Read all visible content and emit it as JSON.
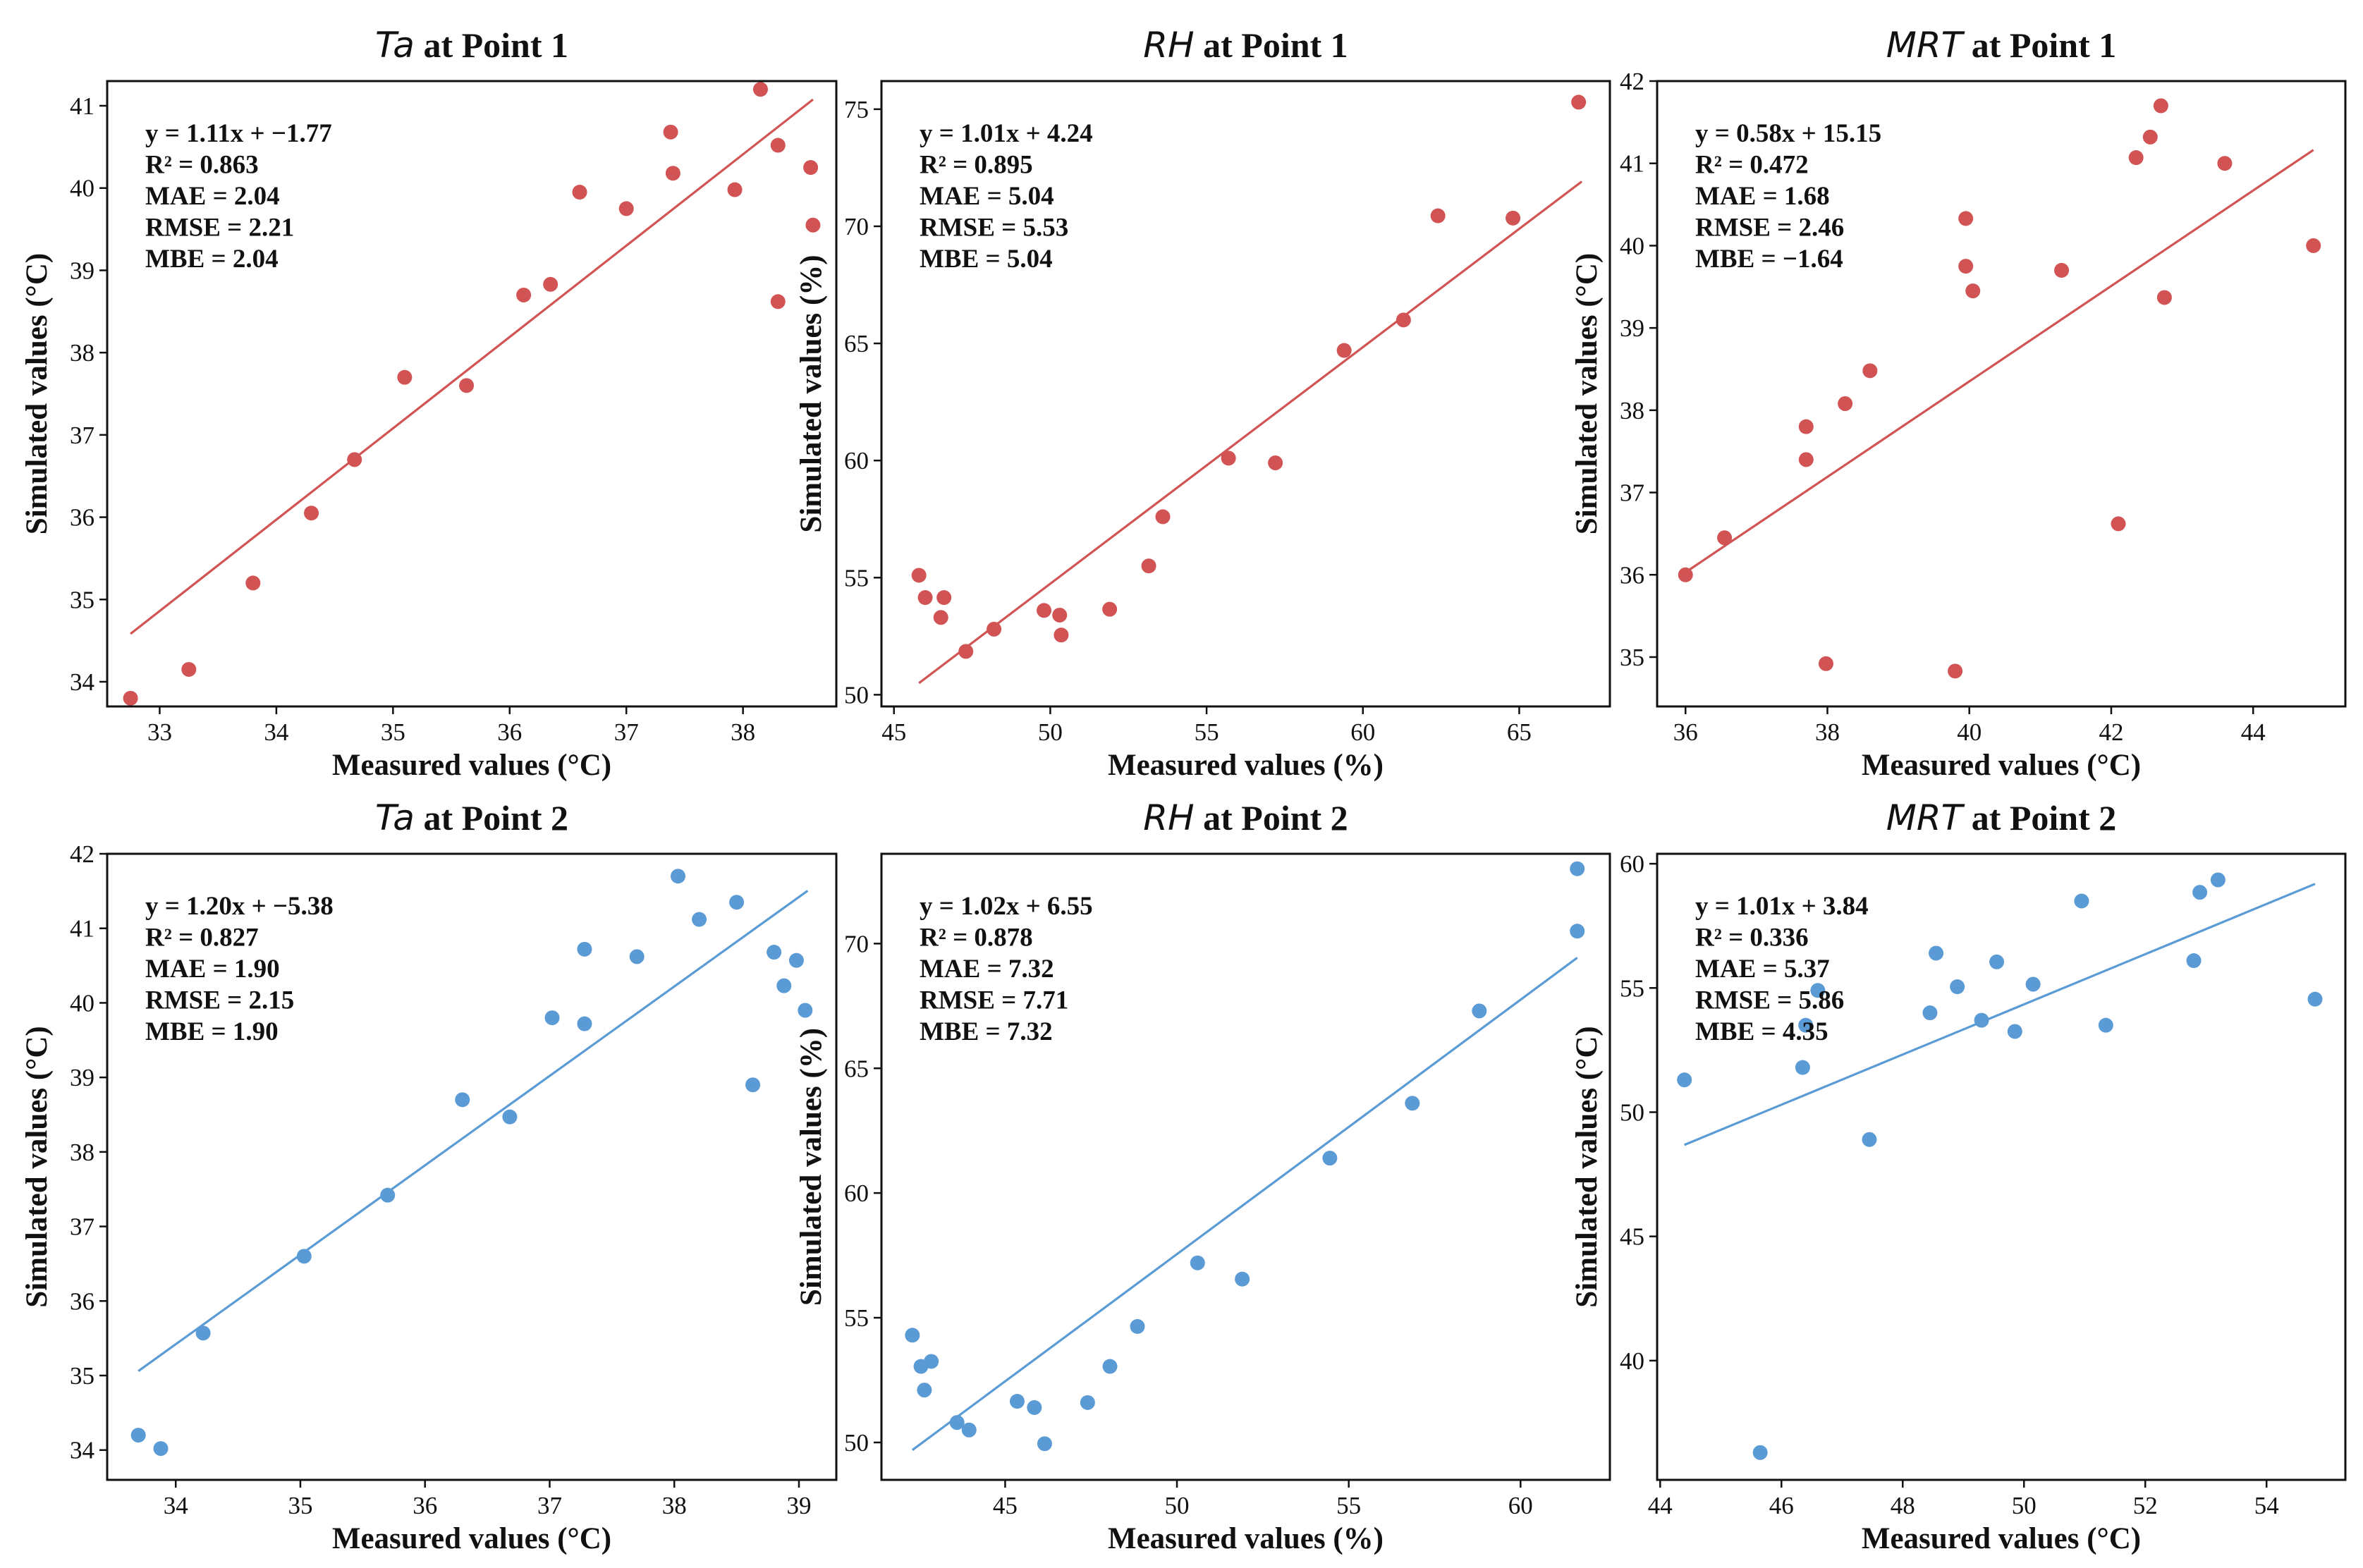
{
  "chart_data": [
    {
      "type": "scatter",
      "title_var": "Ta",
      "title_rest": " at Point 1",
      "xlabel": "Measured values (°C)",
      "ylabel": "Simulated values (°C)",
      "color": "#d15353",
      "xlim": [
        32.55,
        38.8
      ],
      "ylim": [
        33.7,
        41.3
      ],
      "xticks": [
        33,
        34,
        35,
        36,
        37,
        38
      ],
      "yticks": [
        34,
        35,
        36,
        37,
        38,
        39,
        40,
        41
      ],
      "fit": {
        "slope": 1.11,
        "intercept": -1.77,
        "x_start": 32.75,
        "x_end": 38.6
      },
      "stats": [
        "y = 1.11x + −1.77",
        "R² = 0.863",
        "MAE = 2.04",
        "RMSE = 2.21",
        "MBE = 2.04"
      ],
      "points": [
        [
          32.75,
          33.8
        ],
        [
          33.25,
          34.15
        ],
        [
          33.8,
          35.2
        ],
        [
          34.3,
          36.05
        ],
        [
          34.67,
          36.7
        ],
        [
          35.1,
          37.7
        ],
        [
          35.63,
          37.6
        ],
        [
          36.12,
          38.7
        ],
        [
          36.35,
          38.83
        ],
        [
          36.6,
          39.95
        ],
        [
          37.0,
          39.75
        ],
        [
          37.38,
          40.68
        ],
        [
          37.4,
          40.18
        ],
        [
          37.93,
          39.98
        ],
        [
          38.15,
          41.2
        ],
        [
          38.3,
          40.52
        ],
        [
          38.3,
          38.62
        ],
        [
          38.58,
          40.25
        ],
        [
          38.6,
          39.55
        ]
      ]
    },
    {
      "type": "scatter",
      "title_var": "RH",
      "title_rest": " at Point 1",
      "xlabel": "Measured values (%)",
      "ylabel": "Simulated values (%)",
      "color": "#d15353",
      "xlim": [
        44.6,
        67.9
      ],
      "ylim": [
        49.5,
        76.2
      ],
      "xticks": [
        45,
        50,
        55,
        60,
        65
      ],
      "yticks": [
        50,
        55,
        60,
        65,
        70,
        75
      ],
      "fit": {
        "slope": 1.01,
        "intercept": 4.24,
        "x_start": 45.8,
        "x_end": 67.0
      },
      "stats": [
        "y = 1.01x + 4.24",
        "R² = 0.895",
        "MAE = 5.04",
        "RMSE = 5.53",
        "MBE = 5.04"
      ],
      "points": [
        [
          45.8,
          55.1
        ],
        [
          46.0,
          54.15
        ],
        [
          46.5,
          53.3
        ],
        [
          46.6,
          54.15
        ],
        [
          47.3,
          51.85
        ],
        [
          48.2,
          52.8
        ],
        [
          49.8,
          53.6
        ],
        [
          50.3,
          53.4
        ],
        [
          50.35,
          52.55
        ],
        [
          51.9,
          53.65
        ],
        [
          53.15,
          55.5
        ],
        [
          53.6,
          57.6
        ],
        [
          55.7,
          60.1
        ],
        [
          57.2,
          59.9
        ],
        [
          59.4,
          64.7
        ],
        [
          61.3,
          66.0
        ],
        [
          62.4,
          70.45
        ],
        [
          64.8,
          70.35
        ],
        [
          66.9,
          75.3
        ]
      ]
    },
    {
      "type": "scatter",
      "title_var": "MRT",
      "title_rest": " at Point 1",
      "xlabel": "Measured values (°C)",
      "ylabel": "Simulated values (°C)",
      "color": "#d15353",
      "xlim": [
        35.6,
        45.3
      ],
      "ylim": [
        34.4,
        42.0
      ],
      "xticks": [
        36,
        38,
        40,
        42,
        44
      ],
      "yticks": [
        35,
        36,
        37,
        38,
        39,
        40,
        41,
        42
      ],
      "fit": {
        "slope": 0.58,
        "intercept": 15.15,
        "x_start": 36.0,
        "x_end": 44.85
      },
      "stats": [
        "y = 0.58x + 15.15",
        "R² = 0.472",
        "MAE = 1.68",
        "RMSE = 2.46",
        "MBE = −1.64"
      ],
      "points": [
        [
          36.0,
          36.0
        ],
        [
          36.55,
          36.45
        ],
        [
          37.7,
          37.8
        ],
        [
          37.7,
          37.4
        ],
        [
          37.98,
          34.92
        ],
        [
          38.25,
          38.08
        ],
        [
          38.6,
          38.48
        ],
        [
          39.8,
          34.83
        ],
        [
          39.95,
          40.33
        ],
        [
          39.95,
          39.75
        ],
        [
          40.05,
          39.45
        ],
        [
          41.3,
          39.7
        ],
        [
          42.1,
          36.62
        ],
        [
          42.35,
          41.07
        ],
        [
          42.55,
          41.32
        ],
        [
          42.7,
          41.7
        ],
        [
          42.75,
          39.37
        ],
        [
          43.6,
          41.0
        ],
        [
          44.85,
          40.0
        ]
      ]
    },
    {
      "type": "scatter",
      "title_var": "Ta",
      "title_rest": " at Point 2",
      "xlabel": "Measured values (°C)",
      "ylabel": "Simulated values (°C)",
      "color": "#5b9bd5",
      "xlim": [
        33.45,
        39.3
      ],
      "ylim": [
        33.6,
        42.0
      ],
      "xticks": [
        34,
        35,
        36,
        37,
        38,
        39
      ],
      "yticks": [
        34,
        35,
        36,
        37,
        38,
        39,
        40,
        41,
        42
      ],
      "fit": {
        "slope": 1.2,
        "intercept": -5.38,
        "x_start": 33.7,
        "x_end": 39.07
      },
      "stats": [
        "y = 1.20x + −5.38",
        "R² = 0.827",
        "MAE = 1.90",
        "RMSE = 2.15",
        "MBE = 1.90"
      ],
      "points": [
        [
          33.7,
          34.2
        ],
        [
          33.88,
          34.02
        ],
        [
          34.22,
          35.57
        ],
        [
          35.03,
          36.6
        ],
        [
          35.7,
          37.42
        ],
        [
          36.3,
          38.7
        ],
        [
          36.68,
          38.47
        ],
        [
          37.02,
          39.8
        ],
        [
          37.28,
          40.72
        ],
        [
          37.28,
          39.72
        ],
        [
          37.7,
          40.62
        ],
        [
          38.03,
          41.7
        ],
        [
          38.2,
          41.12
        ],
        [
          38.5,
          41.35
        ],
        [
          38.63,
          38.9
        ],
        [
          38.8,
          40.68
        ],
        [
          38.88,
          40.23
        ],
        [
          38.98,
          40.57
        ],
        [
          39.05,
          39.9
        ]
      ]
    },
    {
      "type": "scatter",
      "title_var": "RH",
      "title_rest": " at Point 2",
      "xlabel": "Measured values (%)",
      "ylabel": "Simulated values (%)",
      "color": "#5b9bd5",
      "xlim": [
        41.4,
        62.6
      ],
      "ylim": [
        48.5,
        73.6
      ],
      "xticks": [
        45,
        50,
        55,
        60
      ],
      "yticks": [
        50,
        55,
        60,
        65,
        70
      ],
      "fit": {
        "slope": 1.02,
        "intercept": 6.55,
        "x_start": 42.3,
        "x_end": 61.65
      },
      "stats": [
        "y = 1.02x + 6.55",
        "R² = 0.878",
        "MAE = 7.32",
        "RMSE = 7.71",
        "MBE = 7.32"
      ],
      "points": [
        [
          42.3,
          54.3
        ],
        [
          42.55,
          53.05
        ],
        [
          42.65,
          52.1
        ],
        [
          42.85,
          53.25
        ],
        [
          43.6,
          50.8
        ],
        [
          43.95,
          50.5
        ],
        [
          45.35,
          51.65
        ],
        [
          45.85,
          51.4
        ],
        [
          46.15,
          49.95
        ],
        [
          47.4,
          51.6
        ],
        [
          48.05,
          53.05
        ],
        [
          48.85,
          54.65
        ],
        [
          50.6,
          57.2
        ],
        [
          51.9,
          56.55
        ],
        [
          54.45,
          61.4
        ],
        [
          56.85,
          63.6
        ],
        [
          58.8,
          67.3
        ],
        [
          61.65,
          70.5
        ],
        [
          61.65,
          73.0
        ]
      ]
    },
    {
      "type": "scatter",
      "title_var": "MRT",
      "title_rest": " at Point 2",
      "xlabel": "Measured values (°C)",
      "ylabel": "Simulated values (°C)",
      "color": "#5b9bd5",
      "xlim": [
        43.95,
        55.3
      ],
      "ylim": [
        35.2,
        60.4
      ],
      "xticks": [
        44,
        46,
        48,
        50,
        52,
        54
      ],
      "yticks": [
        40,
        45,
        50,
        55,
        60
      ],
      "fit": {
        "slope": 1.01,
        "intercept": 3.84,
        "x_start": 44.4,
        "x_end": 54.8
      },
      "stats": [
        "y = 1.01x + 3.84",
        "R² = 0.336",
        "MAE = 5.37",
        "RMSE = 5.86",
        "MBE = 4.35"
      ],
      "points": [
        [
          44.4,
          51.3
        ],
        [
          45.65,
          36.3
        ],
        [
          46.35,
          51.8
        ],
        [
          46.4,
          53.5
        ],
        [
          46.6,
          54.9
        ],
        [
          47.45,
          48.9
        ],
        [
          48.45,
          54.0
        ],
        [
          48.55,
          56.4
        ],
        [
          48.9,
          55.05
        ],
        [
          49.3,
          53.7
        ],
        [
          49.55,
          56.05
        ],
        [
          49.85,
          53.25
        ],
        [
          50.15,
          55.15
        ],
        [
          50.95,
          58.5
        ],
        [
          51.35,
          53.5
        ],
        [
          52.8,
          56.1
        ],
        [
          52.9,
          58.85
        ],
        [
          53.2,
          59.35
        ],
        [
          54.8,
          54.55
        ]
      ]
    }
  ]
}
